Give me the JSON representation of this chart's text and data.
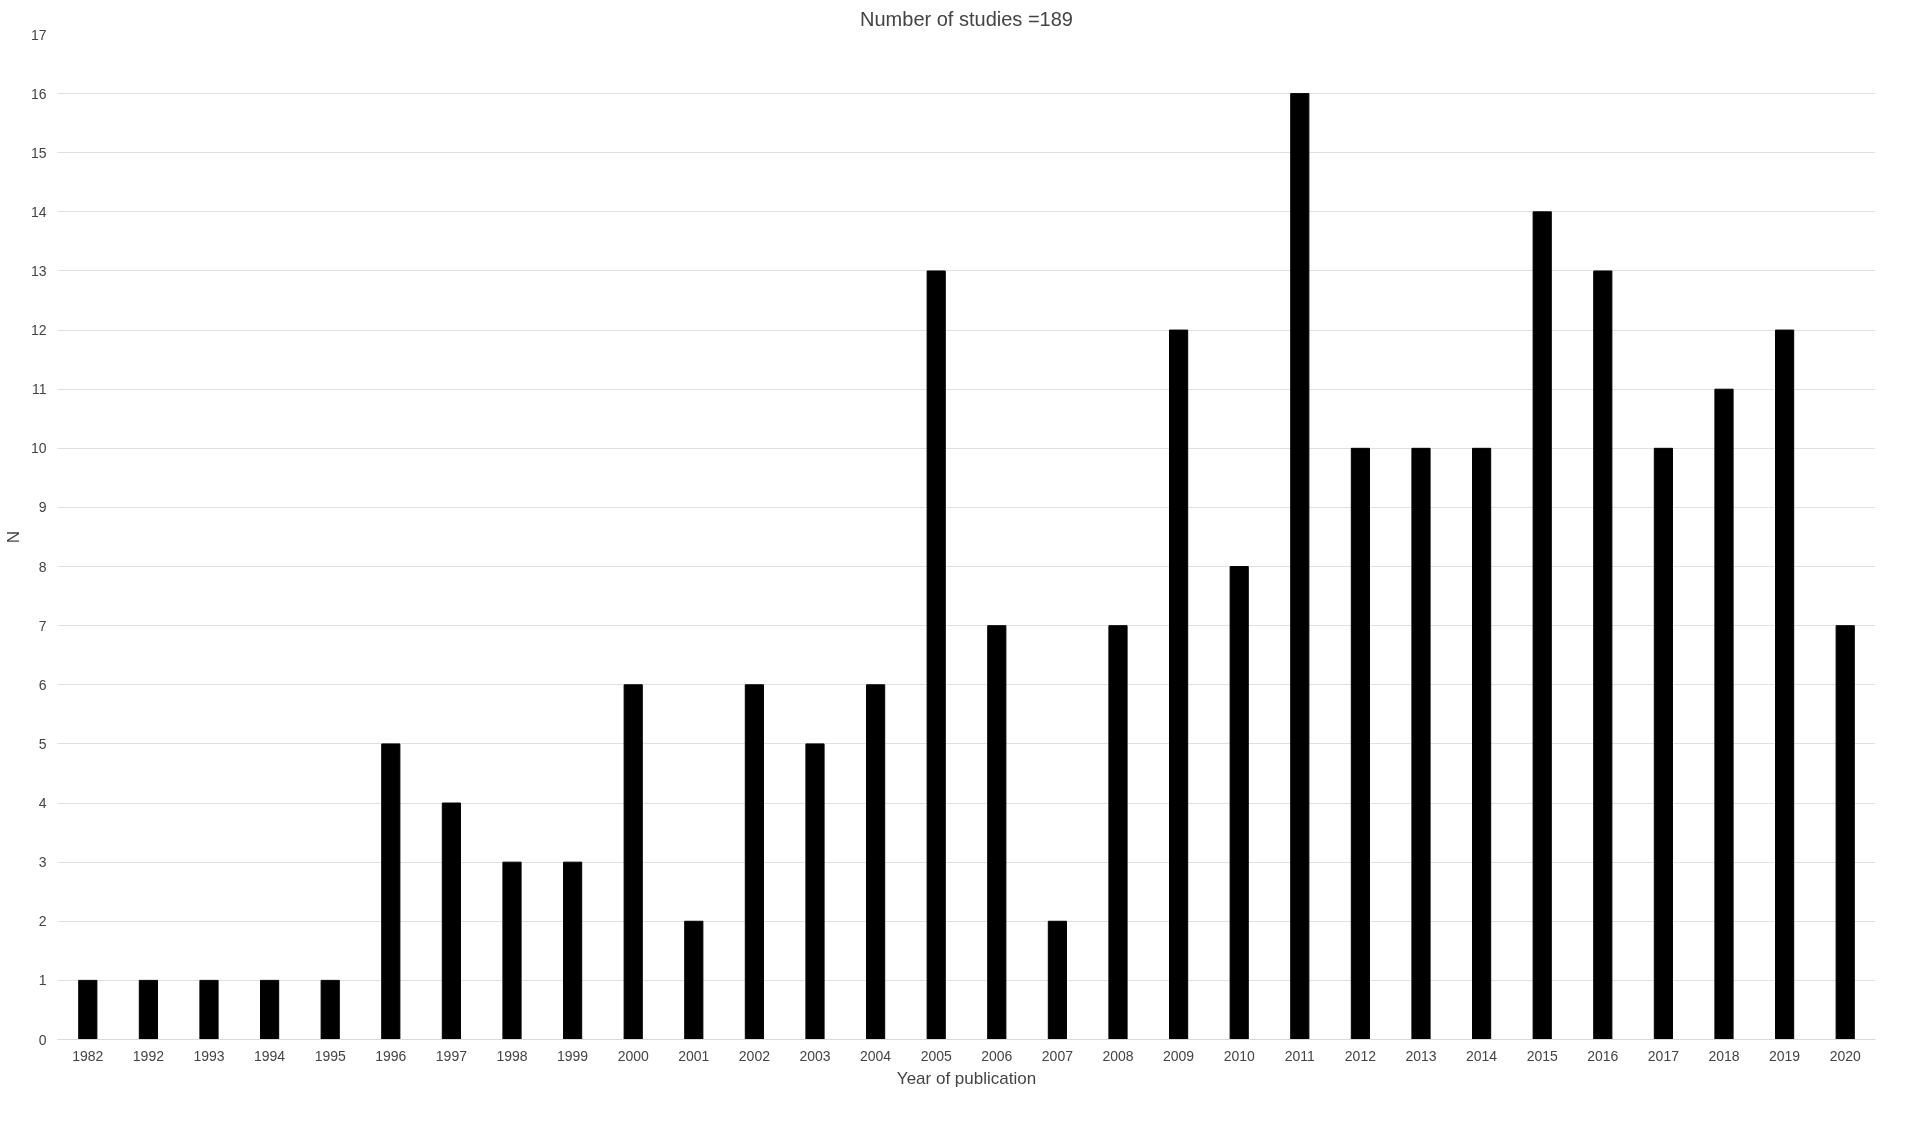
{
  "chart_data": {
    "type": "bar",
    "title": "Number of studies =189",
    "xlabel": "Year of publication",
    "ylabel": "N",
    "categories": [
      "1982",
      "1992",
      "1993",
      "1994",
      "1995",
      "1996",
      "1997",
      "1998",
      "1999",
      "2000",
      "2001",
      "2002",
      "2003",
      "2004",
      "2005",
      "2006",
      "2007",
      "2008",
      "2009",
      "2010",
      "2011",
      "2012",
      "2013",
      "2014",
      "2015",
      "2016",
      "2017",
      "2018",
      "2019",
      "2020"
    ],
    "values": [
      1,
      1,
      1,
      1,
      1,
      5,
      4,
      3,
      3,
      6,
      2,
      6,
      5,
      6,
      13,
      7,
      2,
      7,
      12,
      8,
      16,
      10,
      10,
      10,
      14,
      13,
      10,
      11,
      12,
      7
    ],
    "color": "#000000",
    "ylim": [
      0,
      17
    ],
    "yticks": [
      0,
      1,
      2,
      3,
      4,
      5,
      6,
      7,
      8,
      9,
      10,
      11,
      12,
      13,
      14,
      15,
      16,
      17
    ],
    "grid": "y"
  }
}
